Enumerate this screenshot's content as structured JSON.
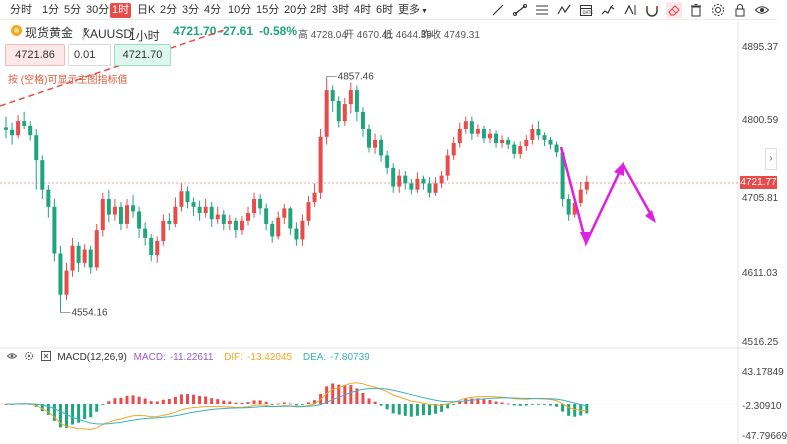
{
  "toolbar": {
    "timeframes": [
      {
        "label": "分时",
        "x": 0
      },
      {
        "label": "1分",
        "x": 0
      },
      {
        "label": "5分",
        "x": 0
      },
      {
        "label": "30分",
        "x": 0
      },
      {
        "label": "1时",
        "x": 0
      },
      {
        "label": "日K",
        "x": 0
      },
      {
        "label": "2分",
        "x": 0
      },
      {
        "label": "3分",
        "x": 0
      },
      {
        "label": "4分",
        "x": 0
      },
      {
        "label": "10分",
        "x": 0
      },
      {
        "label": "15分",
        "x": 0
      },
      {
        "label": "20分",
        "x": 0
      },
      {
        "label": "2时",
        "x": 0
      },
      {
        "label": "3时",
        "x": 0
      },
      {
        "label": "4时",
        "x": 0
      },
      {
        "label": "6时",
        "x": 0
      }
    ],
    "active_timeframe": "1时",
    "more_label": "更多",
    "tools": [
      "draw-line-icon",
      "trend-line-icon",
      "fib-icon",
      "wave-icon",
      "date-range-icon",
      "indicator-icon",
      "eraser-icon",
      "lock-icon",
      "eye-icon"
    ]
  },
  "symbol": {
    "name": "现货黄金",
    "code": "XAUUSD",
    "interval": "1小时",
    "last": "4721.70",
    "change": "-27.61",
    "change_pct": "-0.58%",
    "high_label": "高",
    "high": "4728.04",
    "open_label": "开",
    "open": "4670.41",
    "low_label": "低",
    "low": "4644.39",
    "prev_close_label": "昨收",
    "prev_close": "4749.31"
  },
  "order": {
    "sell_price": "4721.86",
    "quantity": "0.01",
    "buy_price": "4721.70"
  },
  "hint_text": "按 (空格)可显示主图指标值",
  "price_axis": {
    "labels": [
      "4895.37",
      "4800.59",
      "4705.81",
      "4611.03",
      "4516.25"
    ],
    "current_price": "4721.77"
  },
  "macd": {
    "title": "MACD(12,26,9)",
    "macd_label": "MACD:",
    "macd_value": "-11.22611",
    "dif_label": "DIF:",
    "dif_value": "-13.42045",
    "dea_label": "DEA:",
    "dea_value": "-7.80739",
    "axis_labels": [
      "43.17849",
      "-2.30910",
      "-47.79669"
    ]
  },
  "annotations": {
    "high_marker": "4857.46",
    "low_marker": "4554.16"
  },
  "colors": {
    "up": "#e94b4b",
    "down": "#1fa57c",
    "dif": "#f5a623",
    "dea": "#3cb0c6",
    "drawing": "#e020e0",
    "trendline": "#e94b4b"
  },
  "chart_data": {
    "type": "candlestick",
    "candles": [
      [
        4792,
        4789,
        4806,
        4778
      ],
      [
        4789,
        4782,
        4798,
        4770
      ],
      [
        4782,
        4800,
        4808,
        4778
      ],
      [
        4800,
        4794,
        4812,
        4790
      ],
      [
        4794,
        4782,
        4800,
        4775
      ],
      [
        4782,
        4750,
        4790,
        4712
      ],
      [
        4750,
        4712,
        4756,
        4700
      ],
      [
        4712,
        4690,
        4718,
        4676
      ],
      [
        4690,
        4630,
        4700,
        4620
      ],
      [
        4630,
        4577,
        4640,
        4554
      ],
      [
        4577,
        4608,
        4618,
        4570
      ],
      [
        4608,
        4640,
        4650,
        4600
      ],
      [
        4640,
        4618,
        4645,
        4606
      ],
      [
        4618,
        4635,
        4642,
        4612
      ],
      [
        4635,
        4612,
        4640,
        4604
      ],
      [
        4612,
        4660,
        4668,
        4608
      ],
      [
        4660,
        4700,
        4708,
        4652
      ],
      [
        4700,
        4680,
        4712,
        4670
      ],
      [
        4680,
        4690,
        4700,
        4672
      ],
      [
        4690,
        4668,
        4696,
        4660
      ],
      [
        4668,
        4692,
        4700,
        4662
      ],
      [
        4692,
        4684,
        4705,
        4676
      ],
      [
        4684,
        4662,
        4690,
        4650
      ],
      [
        4662,
        4650,
        4670,
        4640
      ],
      [
        4650,
        4628,
        4655,
        4620
      ],
      [
        4628,
        4646,
        4652,
        4618
      ],
      [
        4646,
        4672,
        4680,
        4640
      ],
      [
        4672,
        4668,
        4682,
        4660
      ],
      [
        4668,
        4690,
        4702,
        4664
      ],
      [
        4690,
        4710,
        4720,
        4684
      ],
      [
        4710,
        4696,
        4716,
        4688
      ],
      [
        4696,
        4690,
        4702,
        4678
      ],
      [
        4690,
        4682,
        4698,
        4672
      ],
      [
        4682,
        4690,
        4700,
        4676
      ],
      [
        4690,
        4674,
        4696,
        4664
      ],
      [
        4674,
        4680,
        4690,
        4668
      ],
      [
        4680,
        4668,
        4686,
        4660
      ],
      [
        4668,
        4672,
        4680,
        4660
      ],
      [
        4672,
        4660,
        4676,
        4650
      ],
      [
        4660,
        4672,
        4678,
        4654
      ],
      [
        4672,
        4682,
        4690,
        4666
      ],
      [
        4682,
        4700,
        4708,
        4676
      ],
      [
        4700,
        4688,
        4706,
        4680
      ],
      [
        4688,
        4668,
        4694,
        4660
      ],
      [
        4668,
        4652,
        4672,
        4644
      ],
      [
        4652,
        4676,
        4684,
        4648
      ],
      [
        4676,
        4688,
        4694,
        4668
      ],
      [
        4688,
        4662,
        4690,
        4654
      ],
      [
        4662,
        4648,
        4670,
        4640
      ],
      [
        4648,
        4672,
        4680,
        4640
      ],
      [
        4672,
        4696,
        4704,
        4666
      ],
      [
        4696,
        4708,
        4720,
        4690
      ],
      [
        4708,
        4780,
        4790,
        4700
      ],
      [
        4780,
        4840,
        4857,
        4770
      ],
      [
        4840,
        4826,
        4846,
        4812
      ],
      [
        4826,
        4800,
        4832,
        4792
      ],
      [
        4800,
        4822,
        4830,
        4794
      ],
      [
        4822,
        4840,
        4850,
        4810
      ],
      [
        4840,
        4812,
        4846,
        4800
      ],
      [
        4812,
        4790,
        4818,
        4780
      ],
      [
        4790,
        4766,
        4796,
        4760
      ],
      [
        4766,
        4776,
        4784,
        4758
      ],
      [
        4776,
        4756,
        4782,
        4748
      ],
      [
        4756,
        4740,
        4762,
        4732
      ],
      [
        4740,
        4716,
        4746,
        4708
      ],
      [
        4716,
        4730,
        4738,
        4708
      ],
      [
        4730,
        4720,
        4736,
        4712
      ],
      [
        4720,
        4712,
        4726,
        4706
      ],
      [
        4712,
        4726,
        4734,
        4708
      ],
      [
        4726,
        4720,
        4730,
        4712
      ],
      [
        4720,
        4708,
        4728,
        4702
      ],
      [
        4708,
        4720,
        4728,
        4704
      ],
      [
        4720,
        4730,
        4736,
        4714
      ],
      [
        4730,
        4756,
        4764,
        4724
      ],
      [
        4756,
        4772,
        4780,
        4750
      ],
      [
        4772,
        4790,
        4798,
        4766
      ],
      [
        4790,
        4800,
        4806,
        4784
      ],
      [
        4800,
        4784,
        4806,
        4776
      ],
      [
        4784,
        4790,
        4796,
        4780
      ],
      [
        4790,
        4778,
        4794,
        4772
      ],
      [
        4778,
        4784,
        4790,
        4772
      ],
      [
        4784,
        4772,
        4788,
        4766
      ],
      [
        4772,
        4776,
        4782,
        4766
      ],
      [
        4776,
        4770,
        4780,
        4764
      ],
      [
        4770,
        4758,
        4774,
        4752
      ],
      [
        4758,
        4768,
        4774,
        4752
      ],
      [
        4768,
        4776,
        4782,
        4762
      ],
      [
        4776,
        4790,
        4796,
        4770
      ],
      [
        4790,
        4782,
        4800,
        4776
      ],
      [
        4782,
        4776,
        4786,
        4768
      ],
      [
        4776,
        4770,
        4780,
        4764
      ],
      [
        4770,
        4760,
        4774,
        4754
      ],
      [
        4760,
        4700,
        4765,
        4690
      ],
      [
        4700,
        4680,
        4706,
        4672
      ],
      [
        4680,
        4695,
        4704,
        4676
      ],
      [
        4695,
        4712,
        4722,
        4690
      ],
      [
        4712,
        4722,
        4730,
        4706
      ]
    ]
  }
}
